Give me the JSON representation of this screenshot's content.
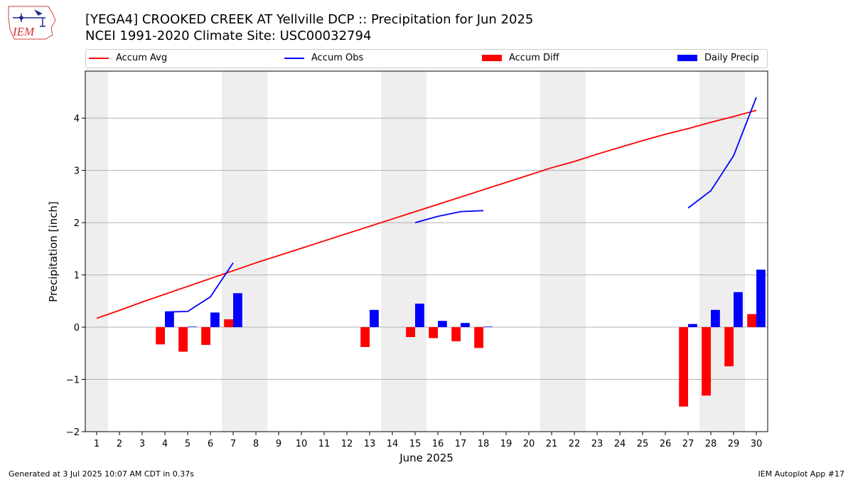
{
  "header": {
    "logo_text": "IEM",
    "title_line1": "[YEGA4] CROOKED CREEK  AT Yellville DCP :: Precipitation for Jun 2025",
    "title_line2": "NCEI 1991-2020 Climate Site: USC00032794"
  },
  "footer": {
    "generated": "Generated at 3 Jul 2025 10:07 AM CDT in 0.37s",
    "app": "IEM Autoplot App #17"
  },
  "colors": {
    "accum_avg": "#ff0000",
    "accum_obs": "#0000ff",
    "accum_diff": "#ff0000",
    "daily_precip": "#0000ff",
    "weekend_shade": "#eeeeee",
    "grid": "#b0b0b0"
  },
  "chart_data": {
    "type": "bar",
    "xlabel": "June 2025",
    "ylabel": "Precipitation [inch]",
    "ylim": [
      -2.0,
      4.9
    ],
    "xlim": [
      0.5,
      30.5
    ],
    "yticks": [
      -2,
      -1,
      0,
      1,
      2,
      3,
      4
    ],
    "ytick_labels": [
      "−2",
      "−1",
      "0",
      "1",
      "2",
      "3",
      "4"
    ],
    "xticks": [
      1,
      2,
      3,
      4,
      5,
      6,
      7,
      8,
      9,
      10,
      11,
      12,
      13,
      14,
      15,
      16,
      17,
      18,
      19,
      20,
      21,
      22,
      23,
      24,
      25,
      26,
      27,
      28,
      29,
      30
    ],
    "grid": "horizontal",
    "legend_position": "top",
    "shaded_day_ranges": [
      [
        0.5,
        1.5
      ],
      [
        6.5,
        8.5
      ],
      [
        13.5,
        15.5
      ],
      [
        20.5,
        22.5
      ],
      [
        27.5,
        29.5
      ]
    ],
    "series": [
      {
        "name": "Accum Avg",
        "kind": "line",
        "x": [
          1,
          2,
          3,
          4,
          5,
          6,
          7,
          8,
          9,
          10,
          11,
          12,
          13,
          14,
          15,
          16,
          17,
          18,
          19,
          20,
          21,
          22,
          23,
          24,
          25,
          26,
          27,
          28,
          29,
          30
        ],
        "values": [
          0.17,
          0.32,
          0.48,
          0.63,
          0.78,
          0.93,
          1.08,
          1.23,
          1.37,
          1.51,
          1.65,
          1.79,
          1.93,
          2.07,
          2.21,
          2.35,
          2.49,
          2.63,
          2.77,
          2.91,
          3.05,
          3.17,
          3.31,
          3.44,
          3.57,
          3.69,
          3.8,
          3.92,
          4.03,
          4.15
        ]
      },
      {
        "name": "Accum Obs",
        "kind": "line",
        "x": [
          4,
          5,
          6,
          7,
          15,
          16,
          17,
          18,
          27,
          28,
          29,
          30
        ],
        "values": [
          0.29,
          0.3,
          0.58,
          1.23,
          2.0,
          2.12,
          2.21,
          2.23,
          2.28,
          2.61,
          3.28,
          4.4
        ],
        "segments": [
          [
            4,
            7
          ],
          [
            15,
            18
          ],
          [
            27,
            30
          ]
        ]
      },
      {
        "name": "Accum Diff",
        "kind": "bar",
        "x": [
          4,
          5,
          6,
          7,
          13,
          15,
          16,
          17,
          18,
          27,
          28,
          29,
          30
        ],
        "values": [
          -0.33,
          -0.47,
          -0.34,
          0.15,
          -0.38,
          -0.19,
          -0.21,
          -0.27,
          -0.4,
          -1.52,
          -1.31,
          -0.75,
          0.25
        ]
      },
      {
        "name": "Daily Precip",
        "kind": "bar",
        "x": [
          4,
          5,
          6,
          7,
          13,
          15,
          16,
          17,
          18,
          27,
          28,
          29,
          30
        ],
        "values": [
          0.3,
          0.01,
          0.28,
          0.65,
          0.33,
          0.45,
          0.12,
          0.08,
          0.01,
          0.06,
          0.33,
          0.67,
          1.1
        ]
      }
    ]
  }
}
